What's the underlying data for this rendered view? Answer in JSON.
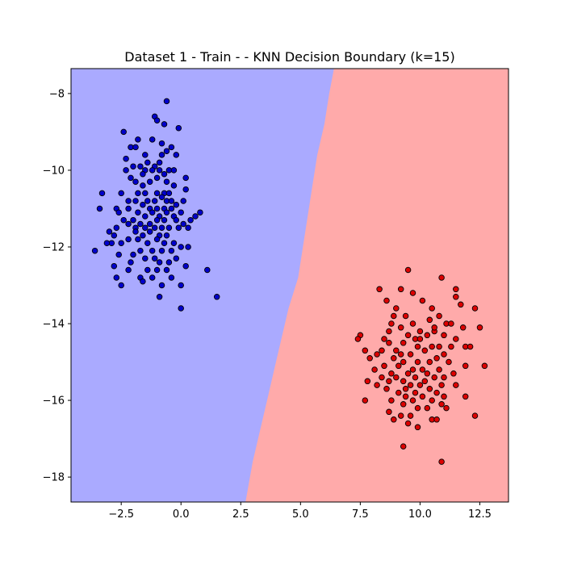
{
  "chart_data": {
    "type": "scatter",
    "title": "Dataset 1 - Train -  - KNN Decision Boundary (k=15)",
    "xlabel": "",
    "ylabel": "",
    "xlim": [
      -4.6,
      13.7
    ],
    "ylim": [
      -18.65,
      -7.35
    ],
    "x_ticks": [
      -2.5,
      0.0,
      2.5,
      5.0,
      7.5,
      10.0,
      12.5
    ],
    "x_tick_labels": [
      "−2.5",
      "0.0",
      "2.5",
      "5.0",
      "7.5",
      "10.0",
      "12.5"
    ],
    "y_ticks": [
      -8,
      -10,
      -12,
      -14,
      -16,
      -18
    ],
    "y_tick_labels": [
      "−8",
      "−10",
      "−12",
      "−14",
      "−16",
      "−18"
    ],
    "grid": false,
    "legend": "none",
    "colors": {
      "region_class_0": "#aaaaff",
      "region_class_1": "#ffaaaa",
      "points_class_0": "#0000cc",
      "points_class_1": "#dd0000",
      "point_edge": "#000000"
    },
    "decision_boundary": [
      [
        6.4,
        -7.35
      ],
      [
        6.2,
        -8.0
      ],
      [
        6.0,
        -8.8
      ],
      [
        5.7,
        -9.6
      ],
      [
        5.5,
        -10.4
      ],
      [
        5.3,
        -11.2
      ],
      [
        5.1,
        -12.0
      ],
      [
        4.9,
        -12.8
      ],
      [
        4.5,
        -13.6
      ],
      [
        4.2,
        -14.4
      ],
      [
        3.9,
        -15.2
      ],
      [
        3.6,
        -16.0
      ],
      [
        3.3,
        -16.8
      ],
      [
        3.0,
        -17.6
      ],
      [
        2.7,
        -18.65
      ]
    ],
    "series": [
      {
        "class": 0,
        "points": [
          [
            -2.4,
            -9.0
          ],
          [
            -2.1,
            -9.4
          ],
          [
            -1.5,
            -9.6
          ],
          [
            -1.8,
            -9.2
          ],
          [
            -1.9,
            -9.4
          ],
          [
            -1.1,
            -8.6
          ],
          [
            -1.0,
            -8.7
          ],
          [
            -0.6,
            -8.2
          ],
          [
            -0.7,
            -8.8
          ],
          [
            -0.1,
            -8.9
          ],
          [
            -1.2,
            -9.2
          ],
          [
            -0.8,
            -9.3
          ],
          [
            -0.6,
            -9.5
          ],
          [
            -0.4,
            -9.4
          ],
          [
            -1.4,
            -9.8
          ],
          [
            -0.2,
            -9.6
          ],
          [
            -0.8,
            -9.6
          ],
          [
            -0.9,
            -9.8
          ],
          [
            -1.1,
            -9.9
          ],
          [
            -2.3,
            -9.7
          ],
          [
            -2.0,
            -9.9
          ],
          [
            -1.7,
            -9.9
          ],
          [
            -1.5,
            -10.0
          ],
          [
            -1.2,
            -10.0
          ],
          [
            -0.9,
            -10.0
          ],
          [
            -0.5,
            -10.0
          ],
          [
            -0.7,
            -10.1
          ],
          [
            -0.3,
            -10.0
          ],
          [
            -1.6,
            -10.1
          ],
          [
            -2.3,
            -10.0
          ],
          [
            -2.1,
            -10.2
          ],
          [
            -1.9,
            -10.3
          ],
          [
            -1.6,
            -10.4
          ],
          [
            -1.3,
            -10.3
          ],
          [
            -1.0,
            -10.2
          ],
          [
            -0.6,
            -10.3
          ],
          [
            0.2,
            -10.2
          ],
          [
            -0.3,
            -10.4
          ],
          [
            -1.8,
            -10.6
          ],
          [
            -1.5,
            -10.6
          ],
          [
            -1.0,
            -10.6
          ],
          [
            -0.7,
            -10.6
          ],
          [
            -0.5,
            -10.6
          ],
          [
            0.2,
            -10.5
          ],
          [
            -2.5,
            -10.6
          ],
          [
            -3.3,
            -10.6
          ],
          [
            -2.2,
            -10.8
          ],
          [
            -1.9,
            -10.8
          ],
          [
            -1.4,
            -10.8
          ],
          [
            -1.1,
            -10.8
          ],
          [
            -0.8,
            -10.7
          ],
          [
            -0.6,
            -10.8
          ],
          [
            -0.4,
            -10.8
          ],
          [
            0.1,
            -10.8
          ],
          [
            -1.6,
            -10.9
          ],
          [
            -1.3,
            -11.0
          ],
          [
            -1.0,
            -11.0
          ],
          [
            -0.7,
            -11.0
          ],
          [
            -0.4,
            -11.0
          ],
          [
            -2.2,
            -11.0
          ],
          [
            -2.7,
            -11.0
          ],
          [
            -3.4,
            -11.0
          ],
          [
            -1.8,
            -11.1
          ],
          [
            -1.5,
            -11.2
          ],
          [
            -1.2,
            -11.1
          ],
          [
            -0.9,
            -11.2
          ],
          [
            -0.6,
            -11.1
          ],
          [
            -0.3,
            -11.2
          ],
          [
            0.0,
            -11.1
          ],
          [
            0.6,
            -11.2
          ],
          [
            0.8,
            -11.1
          ],
          [
            -2.6,
            -11.1
          ],
          [
            -2.0,
            -11.3
          ],
          [
            -1.7,
            -11.4
          ],
          [
            -1.3,
            -11.4
          ],
          [
            -1.0,
            -11.3
          ],
          [
            -0.7,
            -11.3
          ],
          [
            -0.2,
            -11.3
          ],
          [
            0.1,
            -11.4
          ],
          [
            0.4,
            -11.3
          ],
          [
            -2.2,
            -11.4
          ],
          [
            -1.9,
            -11.5
          ],
          [
            -1.5,
            -11.5
          ],
          [
            -1.1,
            -11.5
          ],
          [
            -0.8,
            -11.5
          ],
          [
            -0.5,
            -11.5
          ],
          [
            -0.1,
            -11.5
          ],
          [
            0.3,
            -11.5
          ],
          [
            -2.7,
            -11.5
          ],
          [
            -1.6,
            -11.7
          ],
          [
            -1.3,
            -11.6
          ],
          [
            -0.9,
            -11.7
          ],
          [
            -0.6,
            -11.7
          ],
          [
            -2.8,
            -11.7
          ],
          [
            -3.0,
            -11.6
          ],
          [
            -2.2,
            -11.8
          ],
          [
            -1.8,
            -11.8
          ],
          [
            -1.4,
            -11.9
          ],
          [
            -1.0,
            -11.8
          ],
          [
            -0.7,
            -11.9
          ],
          [
            -0.3,
            -11.9
          ],
          [
            0.0,
            -12.0
          ],
          [
            -2.9,
            -11.9
          ],
          [
            -3.1,
            -11.9
          ],
          [
            -2.5,
            -11.9
          ],
          [
            -1.7,
            -12.1
          ],
          [
            -1.2,
            -12.1
          ],
          [
            -0.8,
            -12.1
          ],
          [
            -0.4,
            -12.1
          ],
          [
            0.3,
            -12.0
          ],
          [
            -3.6,
            -12.1
          ],
          [
            -2.0,
            -12.2
          ],
          [
            -1.5,
            -12.3
          ],
          [
            -1.1,
            -12.3
          ],
          [
            -0.5,
            -12.4
          ],
          [
            -2.1,
            -12.4
          ],
          [
            -2.6,
            -12.2
          ],
          [
            -0.9,
            -12.4
          ],
          [
            -0.2,
            -12.3
          ],
          [
            -1.4,
            -12.6
          ],
          [
            -1.0,
            -12.6
          ],
          [
            -0.6,
            -12.6
          ],
          [
            0.2,
            -12.5
          ],
          [
            -2.2,
            -12.6
          ],
          [
            -2.8,
            -12.5
          ],
          [
            1.1,
            -12.6
          ],
          [
            -1.7,
            -12.8
          ],
          [
            -1.2,
            -12.8
          ],
          [
            -0.4,
            -12.8
          ],
          [
            -2.7,
            -12.8
          ],
          [
            -2.5,
            -13.0
          ],
          [
            -1.6,
            -12.9
          ],
          [
            -0.8,
            -13.0
          ],
          [
            0.0,
            -13.0
          ],
          [
            -0.9,
            -13.3
          ],
          [
            0.0,
            -13.6
          ],
          [
            1.5,
            -13.3
          ],
          [
            -1.9,
            -11.6
          ],
          [
            -0.2,
            -10.9
          ],
          [
            -2.4,
            -11.3
          ]
        ]
      },
      {
        "class": 1,
        "points": [
          [
            9.5,
            -12.6
          ],
          [
            10.9,
            -12.8
          ],
          [
            8.3,
            -13.1
          ],
          [
            9.2,
            -13.1
          ],
          [
            9.7,
            -13.2
          ],
          [
            11.5,
            -13.1
          ],
          [
            8.6,
            -13.4
          ],
          [
            10.1,
            -13.4
          ],
          [
            11.5,
            -13.3
          ],
          [
            11.7,
            -13.5
          ],
          [
            9.0,
            -13.6
          ],
          [
            10.5,
            -13.6
          ],
          [
            12.3,
            -13.6
          ],
          [
            8.9,
            -13.8
          ],
          [
            9.4,
            -13.8
          ],
          [
            10.8,
            -13.8
          ],
          [
            10.4,
            -13.9
          ],
          [
            9.7,
            -14.0
          ],
          [
            8.8,
            -14.0
          ],
          [
            11.1,
            -14.0
          ],
          [
            12.5,
            -14.1
          ],
          [
            11.3,
            -14.0
          ],
          [
            8.7,
            -14.2
          ],
          [
            9.2,
            -14.1
          ],
          [
            10.0,
            -14.2
          ],
          [
            11.8,
            -14.1
          ],
          [
            7.5,
            -14.3
          ],
          [
            7.4,
            -14.4
          ],
          [
            9.5,
            -14.3
          ],
          [
            10.3,
            -14.3
          ],
          [
            10.6,
            -14.2
          ],
          [
            11.0,
            -14.3
          ],
          [
            8.5,
            -14.4
          ],
          [
            9.8,
            -14.4
          ],
          [
            11.5,
            -14.4
          ],
          [
            8.7,
            -14.5
          ],
          [
            9.3,
            -14.5
          ],
          [
            9.9,
            -14.6
          ],
          [
            10.5,
            -14.6
          ],
          [
            11.3,
            -14.6
          ],
          [
            11.9,
            -14.6
          ],
          [
            12.1,
            -14.6
          ],
          [
            10.8,
            -14.6
          ],
          [
            9.0,
            -14.7
          ],
          [
            8.4,
            -14.7
          ],
          [
            7.7,
            -14.7
          ],
          [
            10.2,
            -14.7
          ],
          [
            11.0,
            -14.8
          ],
          [
            9.6,
            -14.8
          ],
          [
            8.9,
            -14.9
          ],
          [
            10.7,
            -14.9
          ],
          [
            7.9,
            -14.9
          ],
          [
            8.2,
            -14.8
          ],
          [
            9.3,
            -15.0
          ],
          [
            9.9,
            -15.0
          ],
          [
            10.4,
            -15.0
          ],
          [
            11.2,
            -15.0
          ],
          [
            11.9,
            -15.1
          ],
          [
            12.7,
            -15.1
          ],
          [
            8.5,
            -15.1
          ],
          [
            9.1,
            -15.1
          ],
          [
            9.7,
            -15.2
          ],
          [
            10.1,
            -15.2
          ],
          [
            10.8,
            -15.2
          ],
          [
            8.1,
            -15.2
          ],
          [
            8.8,
            -15.3
          ],
          [
            9.5,
            -15.3
          ],
          [
            10.3,
            -15.3
          ],
          [
            11.4,
            -15.3
          ],
          [
            8.4,
            -15.4
          ],
          [
            9.0,
            -15.4
          ],
          [
            9.8,
            -15.4
          ],
          [
            10.6,
            -15.4
          ],
          [
            11.0,
            -15.4
          ],
          [
            8.7,
            -15.5
          ],
          [
            9.3,
            -15.5
          ],
          [
            10.2,
            -15.5
          ],
          [
            7.8,
            -15.5
          ],
          [
            8.2,
            -15.6
          ],
          [
            9.6,
            -15.6
          ],
          [
            10.0,
            -15.6
          ],
          [
            10.9,
            -15.6
          ],
          [
            11.5,
            -15.6
          ],
          [
            8.6,
            -15.7
          ],
          [
            9.4,
            -15.7
          ],
          [
            10.4,
            -15.7
          ],
          [
            9.1,
            -15.8
          ],
          [
            9.8,
            -15.8
          ],
          [
            10.7,
            -15.8
          ],
          [
            10.1,
            -15.9
          ],
          [
            11.0,
            -15.9
          ],
          [
            11.9,
            -15.9
          ],
          [
            7.7,
            -16.0
          ],
          [
            8.8,
            -16.0
          ],
          [
            9.7,
            -16.0
          ],
          [
            10.5,
            -16.0
          ],
          [
            9.3,
            -16.1
          ],
          [
            10.9,
            -16.1
          ],
          [
            10.3,
            -16.2
          ],
          [
            9.9,
            -16.2
          ],
          [
            8.7,
            -16.3
          ],
          [
            9.2,
            -16.4
          ],
          [
            9.6,
            -16.4
          ],
          [
            8.9,
            -16.5
          ],
          [
            10.5,
            -16.5
          ],
          [
            10.7,
            -16.5
          ],
          [
            12.3,
            -16.4
          ],
          [
            9.5,
            -16.6
          ],
          [
            9.9,
            -16.7
          ],
          [
            9.3,
            -17.2
          ],
          [
            10.9,
            -17.6
          ],
          [
            11.1,
            -16.2
          ],
          [
            9.2,
            -14.8
          ],
          [
            10.0,
            -14.4
          ],
          [
            9.4,
            -15.9
          ],
          [
            10.6,
            -14.1
          ]
        ]
      }
    ]
  }
}
